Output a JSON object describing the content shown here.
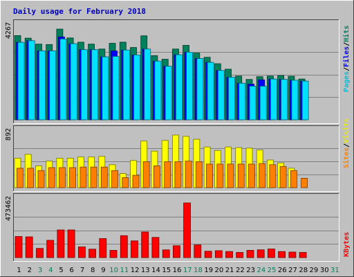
{
  "chart_data": {
    "type": "bar",
    "title": "Daily usage for February 2018",
    "categories": [
      "1",
      "2",
      "3",
      "4",
      "5",
      "6",
      "7",
      "8",
      "9",
      "10",
      "11",
      "12",
      "13",
      "14",
      "15",
      "16",
      "17",
      "18",
      "19",
      "20",
      "21",
      "22",
      "23",
      "24",
      "25",
      "26",
      "27",
      "28",
      "29",
      "30",
      "31"
    ],
    "weekend_days": [
      "3",
      "4",
      "10",
      "11",
      "17",
      "18",
      "24",
      "25",
      "31"
    ],
    "panels": [
      {
        "id": "hits-files-pages",
        "ymax": 4267,
        "ymax_label": "4267",
        "series": [
          {
            "name": "Hits",
            "color": "#00805c",
            "values": [
              3960,
              3840,
              3560,
              3540,
              4267,
              3850,
              3650,
              3560,
              3330,
              3600,
              3650,
              3400,
              3950,
              3020,
              2850,
              3330,
              3500,
              3140,
              2940,
              2640,
              2380,
              2060,
              1900,
              2030,
              2060,
              2080,
              2050,
              1920,
              null,
              null,
              null
            ]
          },
          {
            "name": "Files",
            "color": "#0000ff",
            "values": [
              3640,
              3720,
              3240,
              3240,
              3900,
              3580,
              3300,
              3300,
              2960,
              3240,
              3280,
              3050,
              3330,
              2760,
              2520,
              3060,
              3180,
              2880,
              2700,
              2320,
              2000,
              1720,
              1680,
              1880,
              1920,
              1900,
              1860,
              1820,
              null,
              null,
              null
            ]
          },
          {
            "name": "Pages",
            "color": "#00e0ff",
            "values": [
              3640,
              3720,
              3240,
              3240,
              3800,
              3580,
              3300,
              3300,
              2960,
              2980,
              3280,
              3050,
              3330,
              2760,
              2520,
              3060,
              3180,
              2880,
              2700,
              2320,
              2000,
              1720,
              1580,
              1580,
              1920,
              1900,
              1860,
              1820,
              null,
              null,
              null
            ]
          }
        ]
      },
      {
        "id": "visits-sites",
        "ymax": 892,
        "ymax_label": "892",
        "series": [
          {
            "name": "Visits",
            "color": "#ffff00",
            "values": [
              500,
              565,
              370,
              450,
              500,
              500,
              520,
              520,
              530,
              390,
              240,
              460,
              790,
              620,
              800,
              892,
              870,
              820,
              690,
              630,
              690,
              680,
              670,
              640,
              470,
              420,
              330,
              null,
              null,
              null,
              null
            ]
          },
          {
            "name": "Sites",
            "color": "#ff8000",
            "values": [
              330,
              330,
              290,
              340,
              340,
              340,
              350,
              350,
              350,
              290,
              170,
              210,
              440,
              370,
              440,
              440,
              450,
              440,
              400,
              400,
              400,
              400,
              400,
              410,
              390,
              360,
              290,
              160,
              null,
              null,
              null
            ]
          }
        ]
      },
      {
        "id": "kbytes",
        "ymax": 473462,
        "ymax_label": "473462",
        "series": [
          {
            "name": "KBytes",
            "color": "#ff0000",
            "values": [
              183000,
              180000,
              80000,
              150000,
              240000,
              240000,
              93000,
              73000,
              165000,
              63000,
              190000,
              145000,
              222000,
              175000,
              67000,
              103000,
              473462,
              110000,
              55000,
              60000,
              53000,
              45000,
              63000,
              68000,
              75000,
              53000,
              48000,
              45000,
              null,
              null,
              null
            ]
          }
        ]
      }
    ],
    "right_labels": {
      "top": [
        {
          "text": "Pages",
          "color": "#00c0e0"
        },
        {
          "text": "/",
          "color": "#000000"
        },
        {
          "text": "Files",
          "color": "#0000ff"
        },
        {
          "text": "/",
          "color": "#000000"
        },
        {
          "text": "Hits",
          "color": "#008060"
        }
      ],
      "middle": [
        {
          "text": "Sites",
          "color": "#ff8000"
        },
        {
          "text": "/",
          "color": "#000000"
        },
        {
          "text": "Visits",
          "color": "#e8e800"
        }
      ],
      "bottom": [
        {
          "text": "KBytes",
          "color": "#ff0000"
        }
      ]
    },
    "colors": {
      "background": "#c0c0c0",
      "title": "#0000c0",
      "weekday_label": "#000000",
      "weekend_label": "#00805c"
    }
  }
}
